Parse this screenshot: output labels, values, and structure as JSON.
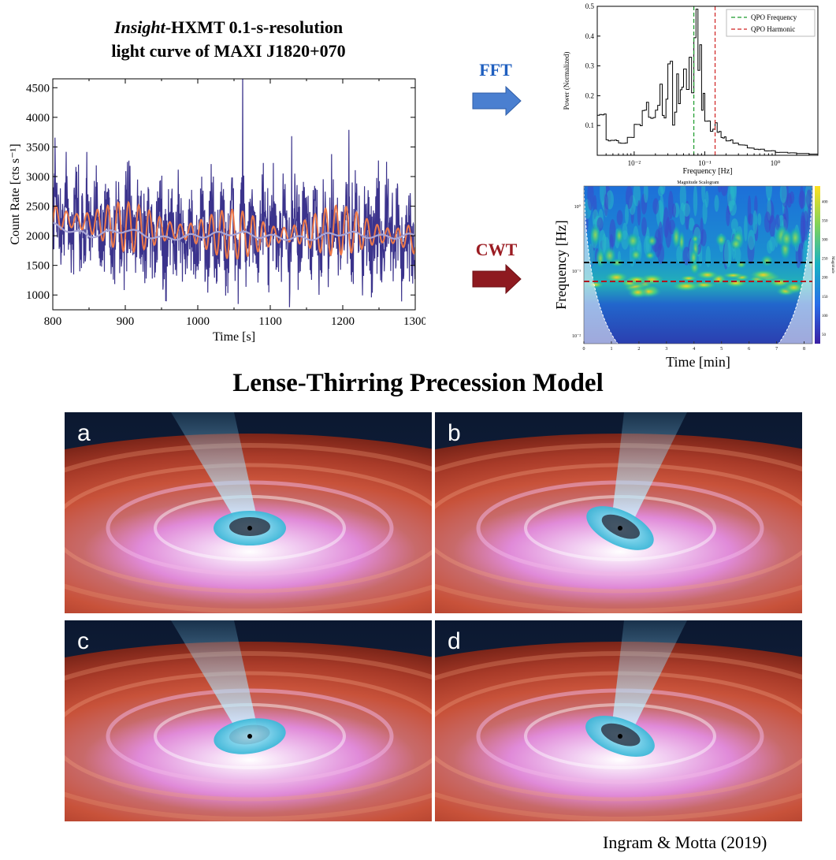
{
  "lightcurve": {
    "title_italic": "Insight",
    "title_rest": "-HXMT 0.1-s-resolution",
    "title_line2": "light curve of MAXI J1820+070",
    "chart_data": {
      "type": "line",
      "xlabel": "Time [s]",
      "ylabel": "Count Rate [cts s⁻¹]",
      "xlim": [
        800,
        1300
      ],
      "ylim": [
        750,
        4650
      ],
      "x_ticks": [
        800,
        900,
        1000,
        1100,
        1200,
        1300
      ],
      "y_ticks": [
        1000,
        1500,
        2000,
        2500,
        3000,
        3500,
        4000,
        4500
      ],
      "series": [
        {
          "role": "raw",
          "color": "#3b338c",
          "x": [
            800,
            900,
            1000,
            1100,
            1200,
            1300
          ],
          "values": [
            2350,
            2100,
            2000,
            2050,
            2100,
            1950
          ]
        },
        {
          "role": "smoothed",
          "color": "#ee7a4a",
          "x": [
            800,
            900,
            1000,
            1100,
            1200,
            1300
          ],
          "values": [
            2300,
            2150,
            2050,
            2000,
            2100,
            1950
          ]
        },
        {
          "role": "trend",
          "color": "#a8a4d6",
          "x": [
            800,
            850,
            900,
            950,
            1000,
            1050,
            1100,
            1150,
            1200,
            1250,
            1300
          ],
          "values": [
            2180,
            2000,
            2100,
            1950,
            2000,
            2050,
            1980,
            1950,
            2050,
            1980,
            2000
          ]
        }
      ],
      "grid": false
    }
  },
  "arrows": {
    "fft_label": "FFT",
    "fft_color": "#4a7fd0",
    "cwt_label": "CWT",
    "cwt_color": "#8e1a20"
  },
  "fft": {
    "chart_data": {
      "type": "line",
      "xlabel": "Frequency [Hz]",
      "ylabel": "Power (Normalized)",
      "xscale": "log",
      "xlim": [
        0.003,
        4
      ],
      "ylim": [
        0,
        0.5
      ],
      "y_ticks": [
        0.1,
        0.2,
        0.3,
        0.4,
        0.5
      ],
      "x_tick_labels": [
        "10⁻²",
        "10⁻¹",
        "10⁰"
      ],
      "legend": [
        "QPO Frequency",
        "QPO Harmonic"
      ],
      "legend_position": "top-right",
      "qpo_frequency": 0.07,
      "qpo_harmonic": 0.14,
      "x": [
        0.003,
        0.0035,
        0.004,
        0.005,
        0.006,
        0.008,
        0.01,
        0.013,
        0.016,
        0.02,
        0.025,
        0.03,
        0.035,
        0.04,
        0.045,
        0.05,
        0.055,
        0.06,
        0.065,
        0.07,
        0.075,
        0.08,
        0.09,
        0.1,
        0.11,
        0.12,
        0.13,
        0.14,
        0.15,
        0.17,
        0.2,
        0.25,
        0.3,
        0.4,
        0.5,
        0.7,
        1,
        1.5,
        2,
        3,
        4
      ],
      "values": [
        0.14,
        0.14,
        0.05,
        0.05,
        0.04,
        0.06,
        0.1,
        0.14,
        0.13,
        0.2,
        0.15,
        0.25,
        0.14,
        0.24,
        0.18,
        0.3,
        0.22,
        0.36,
        0.25,
        0.4,
        0.42,
        0.3,
        0.2,
        0.14,
        0.1,
        0.08,
        0.09,
        0.11,
        0.08,
        0.06,
        0.05,
        0.04,
        0.035,
        0.025,
        0.02,
        0.015,
        0.01,
        0.008,
        0.006,
        0.004,
        0.004
      ]
    }
  },
  "cwt": {
    "chart_data": {
      "type": "heatmap",
      "title": "Magnitude Scalogram",
      "xlabel": "Time [min]",
      "ylabel": "Frequency [Hz]",
      "xlim": [
        0,
        8.3
      ],
      "x_ticks": [
        0,
        1,
        2,
        3,
        4,
        5,
        6,
        7,
        8
      ],
      "y_tick_labels": [
        "10⁰",
        "10⁻¹",
        "10⁻²"
      ],
      "colorbar_label": "Magnitude",
      "colorbar_ticks": [
        50,
        100,
        150,
        200,
        250,
        300,
        350,
        400
      ],
      "marker_lines": [
        {
          "color": "#000000",
          "style": "dashed"
        },
        {
          "color": "#b0171f",
          "style": "dashed"
        }
      ]
    }
  },
  "model": {
    "title": "Lense-Thirring Precession Model",
    "panels": [
      {
        "label": "a",
        "tilt": 0
      },
      {
        "label": "b",
        "tilt": 25
      },
      {
        "label": "c",
        "tilt": -8
      },
      {
        "label": "d",
        "tilt": 20
      }
    ],
    "credit": "Ingram & Motta (2019)"
  }
}
